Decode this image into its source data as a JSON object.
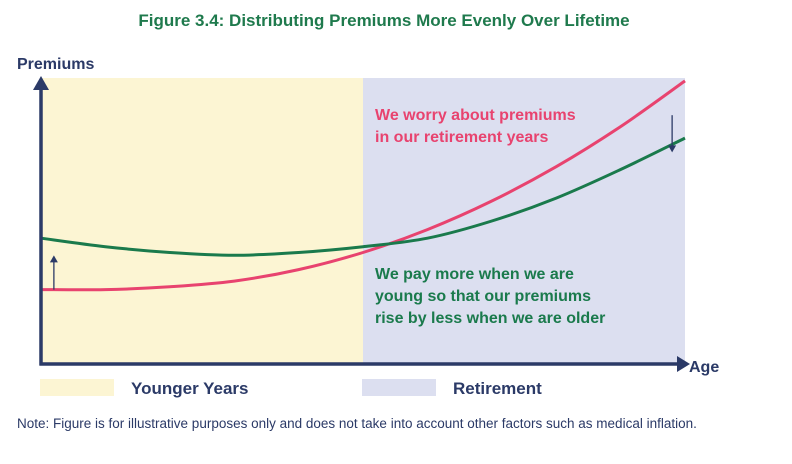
{
  "chart_data": {
    "type": "line",
    "title": "Figure 3.4: Distributing Premiums More Evenly Over Lifetime",
    "ylabel": "Premiums",
    "xlabel": "Age",
    "x": [
      0,
      2,
      4,
      6,
      8,
      10,
      12,
      14,
      16,
      18,
      20
    ],
    "xlim": [
      0,
      20
    ],
    "ylim": [
      0,
      10
    ],
    "divider_x": 10,
    "series": [
      {
        "color": "#e8436f",
        "values": [
          2.6,
          2.6,
          2.7,
          2.9,
          3.3,
          3.9,
          4.7,
          5.7,
          6.9,
          8.3,
          9.9
        ]
      },
      {
        "color": "#1a7a4c",
        "values": [
          4.4,
          4.1,
          3.9,
          3.8,
          3.9,
          4.1,
          4.4,
          5.0,
          5.8,
          6.8,
          7.9
        ]
      }
    ],
    "regions": [
      {
        "label": "Younger Years",
        "color": "#fcf5d3",
        "from": 0,
        "to": 10
      },
      {
        "label": "Retirement",
        "color": "#dcdff0",
        "from": 10,
        "to": 20
      }
    ],
    "annotations": [
      {
        "lines": [
          "We worry about premiums",
          "in our retirement years"
        ],
        "color": "#e8436f"
      },
      {
        "lines": [
          "We pay more when we are",
          "young so that our premiums",
          "rise by less when we are older"
        ],
        "color": "#1a7a4c"
      }
    ],
    "arrows": [
      {
        "at_x": 0.4,
        "direction": "up",
        "from": 2.6,
        "to": 3.8
      },
      {
        "at_x": 19.6,
        "direction": "down",
        "from": 8.7,
        "to": 7.4
      }
    ],
    "axis_color": "#2b3a67",
    "note": "Note: Figure is for illustrative purposes only and does not take into account other factors such as medical inflation."
  }
}
